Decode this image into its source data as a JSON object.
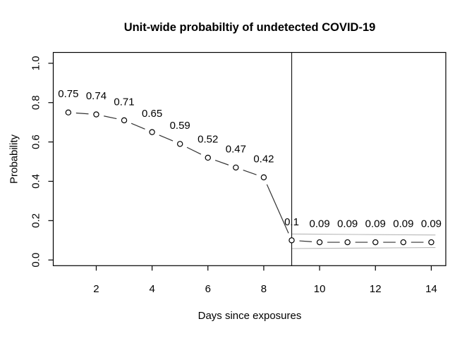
{
  "chart_data": {
    "type": "line",
    "title": "Unit-wide probabiltiy of undetected COVID-19",
    "xlabel": "Days since exposures",
    "ylabel": "Probability",
    "x": [
      1,
      2,
      3,
      4,
      5,
      6,
      7,
      8,
      9,
      10,
      11,
      12,
      13,
      14
    ],
    "values": [
      0.75,
      0.74,
      0.71,
      0.65,
      0.59,
      0.52,
      0.47,
      0.42,
      0.1,
      0.09,
      0.09,
      0.09,
      0.09,
      0.09
    ],
    "point_labels": [
      "0.75",
      "0.74",
      "0.71",
      "0.65",
      "0.59",
      "0.52",
      "0.47",
      "0.42",
      "0.1",
      "0.09",
      "0.09",
      "0.09",
      "0.09",
      "0.09"
    ],
    "x_ticks": [
      "2",
      "4",
      "6",
      "8",
      "10",
      "12",
      "14"
    ],
    "x_tick_values": [
      2,
      4,
      6,
      8,
      10,
      12,
      14
    ],
    "y_ticks": [
      "0.0",
      "0.2",
      "0.4",
      "0.6",
      "0.8",
      "1.0"
    ],
    "y_tick_values": [
      0,
      0.2,
      0.4,
      0.6,
      0.8,
      1.0
    ],
    "xlim": [
      0.46,
      14.52
    ],
    "ylim": [
      -0.029,
      1.055
    ],
    "grid": false,
    "legend": null,
    "vline_x": 9,
    "ci_band": {
      "x": [
        9,
        10,
        11,
        12,
        13,
        14,
        14.15
      ],
      "upper": [
        0.132,
        0.131,
        0.13,
        0.129,
        0.128,
        0.127,
        0.127
      ],
      "lower": [
        0.058,
        0.059,
        0.06,
        0.061,
        0.062,
        0.063,
        0.063
      ]
    },
    "colors": {
      "points": "#000000",
      "segments": "#333333",
      "band": "#b8b8b8",
      "vline": "#1a1a1a",
      "box": "#000000",
      "text": "#000000",
      "background": "#ffffff"
    }
  }
}
